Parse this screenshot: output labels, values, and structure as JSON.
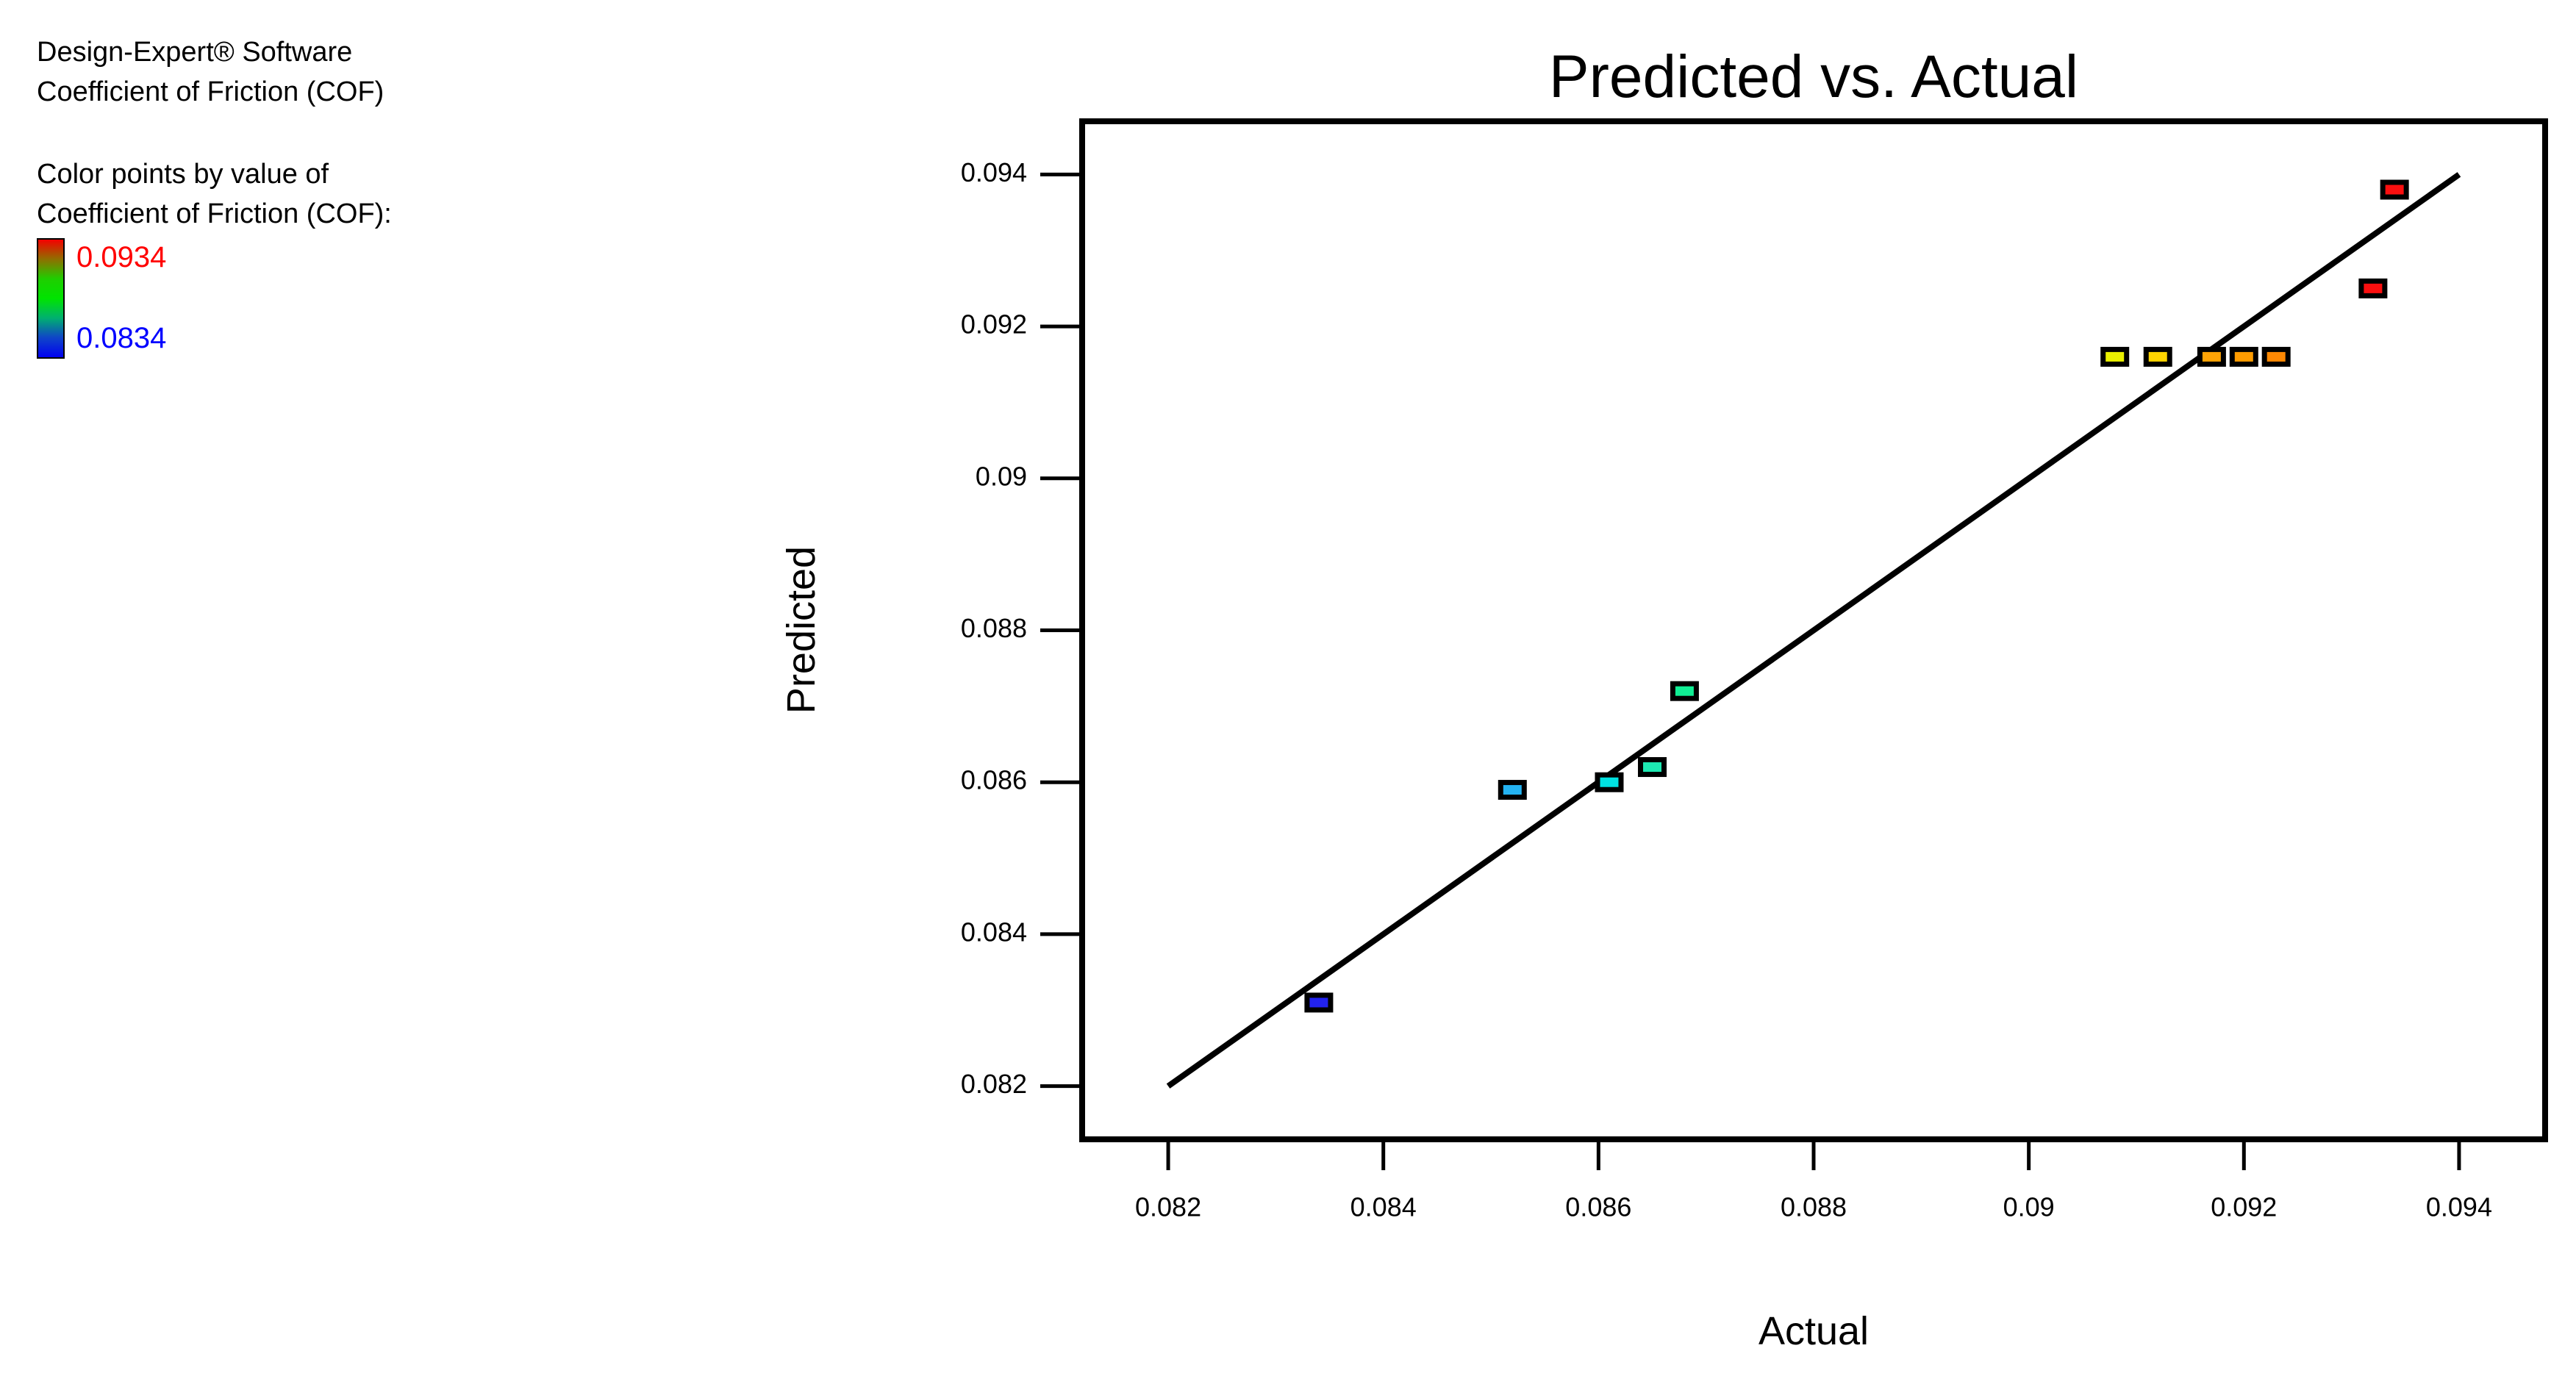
{
  "info": {
    "software": "Design-Expert® Software",
    "response": "Coefficient of Friction (COF)"
  },
  "legend": {
    "caption_line1": "Color points by value of",
    "caption_line2": "Coefficient of Friction (COF):",
    "max_label": "0.0934",
    "min_label": "0.0834",
    "max_color": "#ff0000",
    "min_color": "#0000ff",
    "gradient_colors": [
      "#f50000",
      "#8f6f00",
      "#1fce00",
      "#00e400",
      "#00b070",
      "#0f45c8",
      "#0202f0"
    ]
  },
  "chart_data": {
    "type": "scatter",
    "title": "Predicted vs. Actual",
    "xlabel": "Actual",
    "ylabel": "Predicted",
    "xlim": [
      0.0812,
      0.0948
    ],
    "ylim": [
      0.0813,
      0.0947
    ],
    "xticks": [
      0.082,
      0.084,
      0.086,
      0.088,
      0.09,
      0.092,
      0.094
    ],
    "yticks": [
      0.082,
      0.084,
      0.086,
      0.088,
      0.09,
      0.092,
      0.094
    ],
    "grid": false,
    "marker": "square",
    "reference_line": {
      "x1": 0.082,
      "y1": 0.082,
      "x2": 0.094,
      "y2": 0.094,
      "color": "#000000"
    },
    "points": [
      {
        "actual": 0.0834,
        "predicted": 0.0831,
        "color": "#2222ee"
      },
      {
        "actual": 0.0852,
        "predicted": 0.0859,
        "color": "#24b3f2"
      },
      {
        "actual": 0.0861,
        "predicted": 0.086,
        "color": "#00e1e1"
      },
      {
        "actual": 0.0865,
        "predicted": 0.0862,
        "color": "#1de9b2"
      },
      {
        "actual": 0.0868,
        "predicted": 0.0872,
        "color": "#10ee94"
      },
      {
        "actual": 0.0908,
        "predicted": 0.0916,
        "color": "#eaf000"
      },
      {
        "actual": 0.0912,
        "predicted": 0.0916,
        "color": "#ffd400"
      },
      {
        "actual": 0.0917,
        "predicted": 0.0916,
        "color": "#ffa405"
      },
      {
        "actual": 0.092,
        "predicted": 0.0916,
        "color": "#ff9c00"
      },
      {
        "actual": 0.0923,
        "predicted": 0.0916,
        "color": "#ff8903"
      },
      {
        "actual": 0.0932,
        "predicted": 0.0925,
        "color": "#fb0f0f"
      },
      {
        "actual": 0.0934,
        "predicted": 0.0938,
        "color": "#fb0f0f"
      }
    ]
  }
}
